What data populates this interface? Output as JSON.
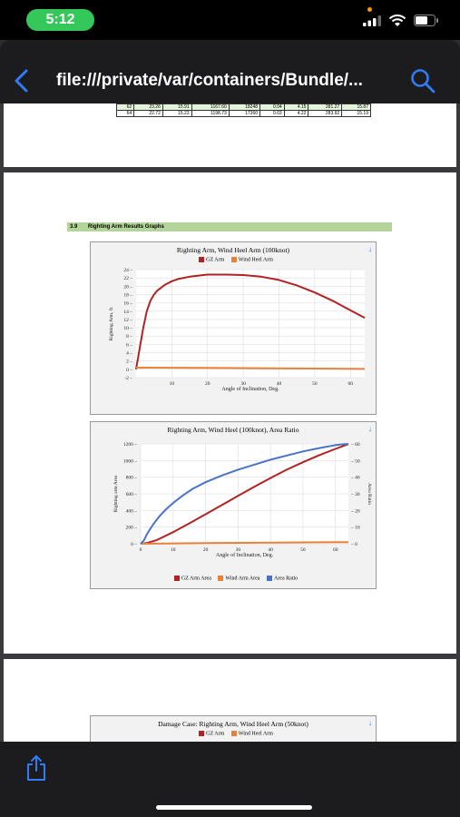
{
  "status_bar": {
    "time": "5:12"
  },
  "browser": {
    "url": "file:///private/var/containers/Bundle/..."
  },
  "table": {
    "rows": [
      [
        "62",
        "23.26",
        "15.91",
        "1167.60",
        "18248",
        "0.04",
        "4.15",
        "281.27",
        "15.87"
      ],
      [
        "64",
        "22.72",
        "15.22",
        "1198.73",
        "17360",
        "0.03",
        "4.22",
        "283.92",
        "15.19"
      ]
    ]
  },
  "section": {
    "number": "3.9",
    "title": "Righting Arm Results Graphs"
  },
  "chart_data": [
    {
      "type": "line",
      "title": "Righting Arm, Wind Heel Arm (100knot)",
      "xlabel": "Angle of Inclination, Deg.",
      "ylabel": "Righting Arm, ft.",
      "xlim": [
        0,
        64
      ],
      "ylim": [
        -2,
        24
      ],
      "x_ticks": [
        "10",
        "20",
        "30",
        "40",
        "50",
        "60"
      ],
      "y_ticks": [
        "24",
        "22",
        "20",
        "18",
        "16",
        "14",
        "12",
        "10",
        "8",
        "6",
        "4",
        "2",
        "0",
        "-2"
      ],
      "legend_position": "top",
      "grid": true,
      "series": [
        {
          "name": "GZ Arm",
          "color": "#b22222",
          "x": [
            0,
            1,
            2,
            3,
            4,
            5,
            6,
            8,
            10,
            12,
            15,
            18,
            20,
            25,
            30,
            35,
            40,
            45,
            50,
            55,
            60,
            64
          ],
          "y": [
            0,
            5,
            10,
            14,
            16.5,
            18,
            19,
            20.3,
            21.2,
            21.8,
            22.3,
            22.6,
            22.8,
            22.8,
            22.7,
            22.3,
            21.5,
            20.2,
            18.5,
            16.5,
            14.2,
            12.4
          ]
        },
        {
          "name": "Wind Heel Arm",
          "color": "#e8823a",
          "x": [
            0,
            10,
            20,
            30,
            40,
            50,
            60,
            64
          ],
          "y": [
            0.4,
            0.38,
            0.34,
            0.3,
            0.24,
            0.18,
            0.12,
            0.1
          ]
        }
      ]
    },
    {
      "type": "line",
      "title": "Righting Arm, Wind Heel (100knot), Area Ratio",
      "xlabel": "Angle of Inclination, Deg.",
      "ylabel": "Righting arm Area",
      "y2label": "Area Ratio",
      "xlim": [
        0,
        64
      ],
      "ylim": [
        0,
        1200
      ],
      "y2lim": [
        0,
        60
      ],
      "x_ticks": [
        "0",
        "10",
        "20",
        "30",
        "40",
        "50",
        "60"
      ],
      "y_ticks": [
        "1200",
        "1000",
        "800",
        "600",
        "400",
        "200",
        "0"
      ],
      "y2_ticks": [
        "60",
        "50",
        "40",
        "30",
        "20",
        "10",
        "0"
      ],
      "legend_position": "bottom",
      "grid": true,
      "series": [
        {
          "name": "GZ Arm Area",
          "color": "#b22222",
          "axis": "left",
          "x": [
            0,
            2,
            5,
            10,
            15,
            20,
            25,
            30,
            35,
            40,
            45,
            50,
            55,
            60,
            64
          ],
          "y": [
            0,
            10,
            45,
            140,
            245,
            355,
            465,
            575,
            685,
            790,
            890,
            980,
            1065,
            1140,
            1198
          ]
        },
        {
          "name": "Wind Arm Area",
          "color": "#e8823a",
          "axis": "left",
          "x": [
            0,
            10,
            20,
            30,
            40,
            50,
            60,
            64
          ],
          "y": [
            0,
            4,
            8,
            11,
            14,
            16,
            18,
            19
          ]
        },
        {
          "name": "Area Ratio",
          "color": "#4a72c8",
          "axis": "right",
          "x": [
            0,
            1,
            2,
            3,
            4,
            5,
            6,
            8,
            10,
            13,
            16,
            20,
            25,
            30,
            35,
            40,
            45,
            50,
            55,
            60,
            64
          ],
          "y": [
            0,
            2,
            6,
            9,
            12,
            14.5,
            17,
            21,
            24.5,
            29,
            33,
            37,
            41,
            44.5,
            47.5,
            50.5,
            53,
            55.5,
            57.5,
            59.3,
            60
          ]
        }
      ]
    },
    {
      "type": "line",
      "title": "Damage Case: Righting Arm, Wind Heel Arm (50knot)",
      "legend_position": "top",
      "series": [
        {
          "name": "GZ Arm",
          "color": "#b22222"
        },
        {
          "name": "Wind Heel Arm",
          "color": "#e8823a"
        }
      ]
    }
  ]
}
